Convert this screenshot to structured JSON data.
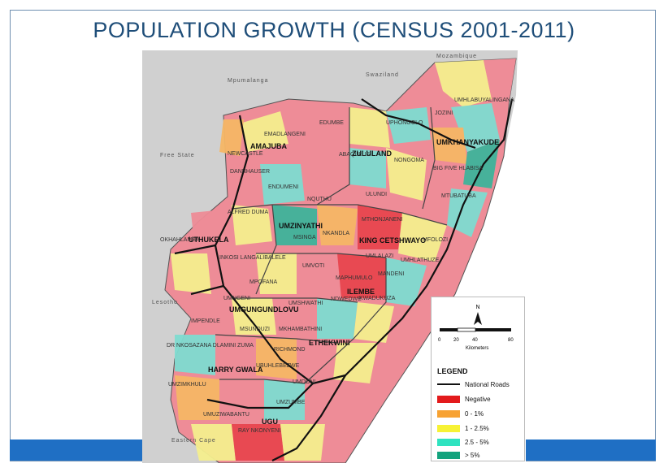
{
  "title": "POPULATION GROWTH (CENSUS 2001-2011)",
  "map": {
    "neighbours": [
      "Mozambique",
      "Mpumalanga",
      "Swaziland",
      "Free State",
      "Lesotho",
      "Eastern Cape"
    ],
    "districts": [
      "AMAJUBA",
      "ZULULAND",
      "UMKHANYAKUDE",
      "UMZINYATHI",
      "UTHUKELA",
      "KING CETSHWAYO",
      "ILEMBE",
      "UMGUNGUNDLOVU",
      "ETHEKWINI",
      "HARRY GWALA",
      "UGU"
    ],
    "municipalities": [
      "UMHLABUYALINGANA",
      "JOZINI",
      "UPHONGOLO",
      "EDUMBE",
      "DANNHAUSER",
      "NEWCASTLE",
      "ABAQULUSI",
      "EMADLANGENI",
      "DANNHAUSER",
      "ENDUMENI",
      "NQUTHU",
      "ULUNDI",
      "NONGOMA",
      "MTUBATUBA",
      "BIG FIVE HLABISA",
      "ALFRED DUMA",
      "OKHAHLAMBA",
      "MSINGA",
      "INKOSI LANGALIBALELE",
      "NKANDLA",
      "UMLALAZI",
      "MTHONJANENI",
      "MFOLOZI",
      "UMHLATHUZE",
      "MAPHUMULO",
      "NDWEDWE",
      "KWADUKUZA",
      "MANDENI",
      "MPOFANA",
      "UMVOTI",
      "UMSHWATHI",
      "IMPENDLE",
      "MKHAMBATHINI",
      "RICHMOND",
      "MSUNDUZI",
      "UMNGENI",
      "DR NKOSAZANA DLAMINI ZUMA",
      "UBUHLEBEZWE",
      "UMZIMKHULU",
      "UMDONI",
      "UMZUMBE",
      "RAY NKONYENI",
      "UMUZIWABANTU"
    ],
    "colors": {
      "negative": "#e8464f",
      "pink": "#ee8c97",
      "orange": "#f6b766",
      "yellow": "#f5ef8e",
      "cyan": "#7fdcd0",
      "teal": "#3fb39b",
      "gray": "#c8c8c8",
      "road": "#111111",
      "sea": "#ffffff"
    }
  },
  "legend": {
    "north": "N",
    "scale_ticks": [
      "0",
      "20",
      "40",
      "80"
    ],
    "scale_unit": "Kilometers",
    "title": "LEGEND",
    "items": [
      {
        "label": "National Roads",
        "kind": "line",
        "color": "#111111"
      },
      {
        "label": "Negative",
        "kind": "fill",
        "color": "#e31a1c"
      },
      {
        "label": "0 - 1%",
        "kind": "fill",
        "color": "#f7a233"
      },
      {
        "label": "1 - 2.5%",
        "kind": "fill",
        "color": "#f7f235"
      },
      {
        "label": "2.5 - 5%",
        "kind": "fill",
        "color": "#2fe3c0"
      },
      {
        "label": "> 5%",
        "kind": "fill",
        "color": "#13a37d"
      }
    ]
  }
}
